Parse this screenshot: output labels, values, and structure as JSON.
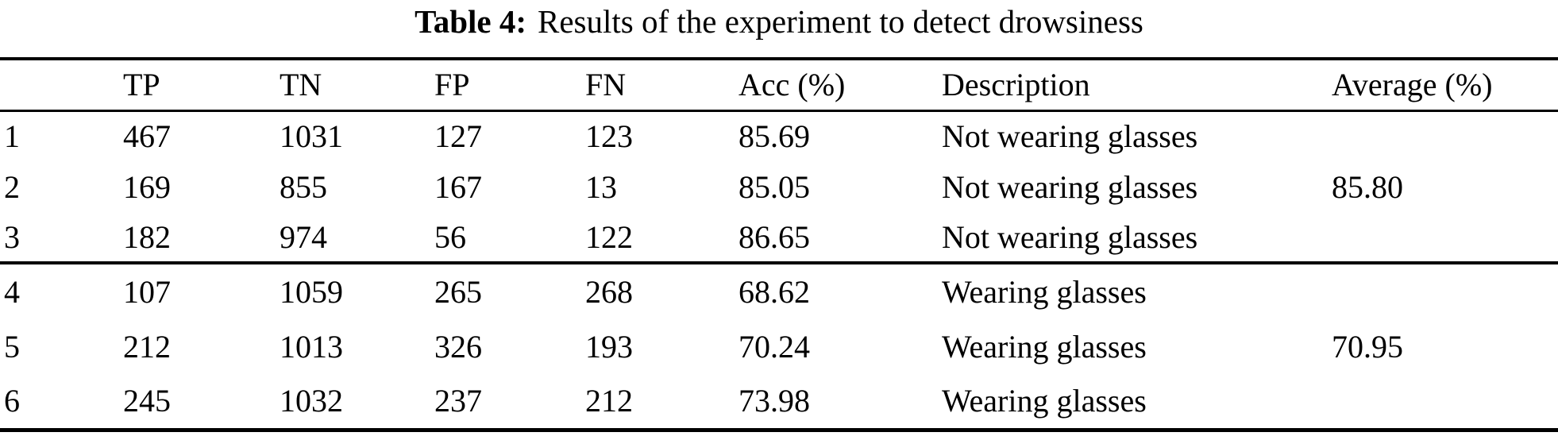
{
  "table": {
    "caption": {
      "label": "Table 4:",
      "text": "Results of the experiment to detect drowsiness"
    },
    "columns": [
      "",
      "TP",
      "TN",
      "FP",
      "FN",
      "Acc (%)",
      "Description",
      "Average (%)"
    ],
    "groups": [
      {
        "name": "not-wearing-glasses",
        "rows": [
          [
            "1",
            "467",
            "1031",
            "127",
            "123",
            "85.69",
            "Not wearing glasses",
            ""
          ],
          [
            "2",
            "169",
            "855",
            "167",
            "13",
            "85.05",
            "Not wearing glasses",
            "85.80"
          ],
          [
            "3",
            "182",
            "974",
            "56",
            "122",
            "86.65",
            "Not wearing glasses",
            ""
          ]
        ]
      },
      {
        "name": "wearing-glasses",
        "rows": [
          [
            "4",
            "107",
            "1059",
            "265",
            "268",
            "68.62",
            "Wearing glasses",
            ""
          ],
          [
            "5",
            "212",
            "1013",
            "326",
            "193",
            "70.24",
            "Wearing glasses",
            "70.95"
          ],
          [
            "6",
            "245",
            "1032",
            "237",
            "212",
            "73.98",
            "Wearing glasses",
            ""
          ]
        ]
      }
    ],
    "colors": {
      "text": "#000000",
      "background": "#ffffff",
      "rule": "#000000"
    }
  }
}
